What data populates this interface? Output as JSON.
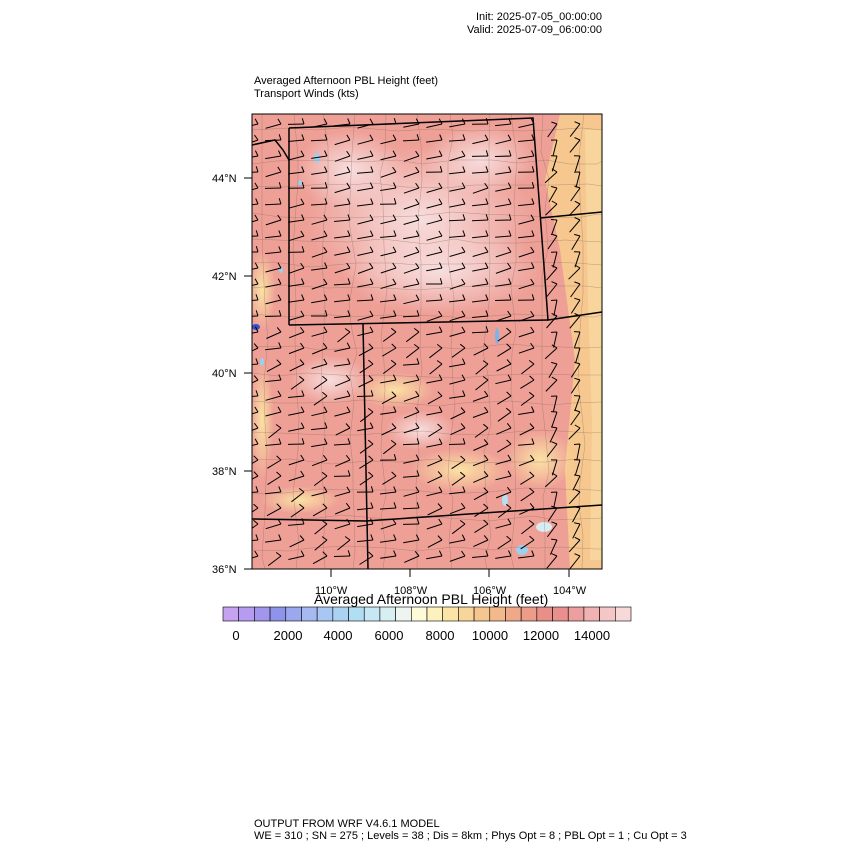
{
  "header": {
    "init": "Init: 2025-07-05_00:00:00",
    "valid": "Valid: 2025-07-09_06:00:00"
  },
  "titles": {
    "line1": "Averaged Afternoon PBL Height   (feet)",
    "line2": "Transport Winds   (kts)"
  },
  "map": {
    "lat_labels": [
      "44°N",
      "42°N",
      "40°N",
      "38°N",
      "36°N"
    ],
    "lon_labels": [
      "110°W",
      "108°W",
      "106°W",
      "104°W"
    ]
  },
  "colorbar": {
    "title": "Averaged Afternoon PBL Height  (feet)",
    "tick_labels": [
      "0",
      "2000",
      "4000",
      "6000",
      "8000",
      "10000",
      "12000",
      "14000"
    ],
    "colors": [
      "#c6a3f0",
      "#b59cf0",
      "#a295ec",
      "#8f94ea",
      "#9aa8ee",
      "#a6b9f1",
      "#a9c7f3",
      "#acd2f3",
      "#b2def4",
      "#c6e7f3",
      "#d8eff1",
      "#eef4ef",
      "#fdfad7",
      "#fdf1bd",
      "#fbe4a5",
      "#f8d598",
      "#f6c690",
      "#f3b98b",
      "#f0a988",
      "#ec9c88",
      "#e88f88",
      "#e98f8e",
      "#ec9f9e",
      "#f0b2b2",
      "#f4c6c6",
      "#f8d9d9"
    ]
  },
  "footer": {
    "line1": "OUTPUT FROM WRF V4.6.1 MODEL",
    "line2": "WE = 310 ; SN = 275 ; Levels = 38 ; Dis = 8km ; Phys Opt = 8 ; PBL Opt = 1 ; Cu Opt = 3"
  }
}
